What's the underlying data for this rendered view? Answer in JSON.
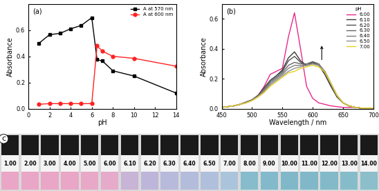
{
  "chart_data": [
    {
      "type": "line",
      "title": "(a)",
      "x_label": "pH",
      "y_label": "Absorbance",
      "xlim": [
        0,
        14
      ],
      "xticks": [
        0,
        2,
        4,
        6,
        8,
        10,
        12,
        14
      ],
      "ylim": [
        0,
        0.8
      ],
      "yticks": [
        {
          "value": 0,
          "label": "0.0"
        },
        {
          "value": 0.2,
          "label": "0.2"
        },
        {
          "value": 0.4,
          "label": "0.4"
        },
        {
          "value": 0.6,
          "label": "0.6"
        }
      ],
      "legend": "upper right",
      "series": [
        {
          "name": "A at 570 nm",
          "color": "#000000",
          "marker": "square",
          "x": [
            1,
            2,
            3,
            4,
            5,
            6,
            6.5,
            7,
            8,
            10,
            14
          ],
          "values": [
            0.5,
            0.565,
            0.575,
            0.61,
            0.635,
            0.695,
            0.375,
            0.365,
            0.29,
            0.25,
            0.12
          ]
        },
        {
          "name": "A at 600 nm",
          "color": "#ff2020",
          "marker": "circle",
          "x": [
            1,
            2,
            3,
            4,
            5,
            6,
            6.5,
            7,
            8,
            10,
            14
          ],
          "values": [
            0.035,
            0.04,
            0.04,
            0.04,
            0.04,
            0.04,
            0.48,
            0.44,
            0.4,
            0.385,
            0.325
          ]
        }
      ]
    },
    {
      "type": "line",
      "title": "(b)",
      "x_label": "Wavelength / nm",
      "y_label": "Absorbance",
      "xlim": [
        450,
        700
      ],
      "xticks": [
        450,
        500,
        550,
        600,
        650,
        700
      ],
      "ylim": [
        0,
        0.7
      ],
      "yticks": [
        {
          "value": 0,
          "label": "0.0"
        },
        {
          "value": 0.2,
          "label": "0.2"
        },
        {
          "value": 0.4,
          "label": "0.4"
        },
        {
          "value": 0.6,
          "label": "0.6"
        }
      ],
      "legend": "upper right",
      "legend_title": "pH",
      "x": [
        450,
        460,
        470,
        480,
        490,
        500,
        510,
        520,
        530,
        540,
        550,
        560,
        570,
        580,
        590,
        600,
        610,
        620,
        630,
        640,
        650,
        660,
        670,
        680,
        690,
        700
      ],
      "series": [
        {
          "name": "6.00",
          "color": "#e8288c",
          "values": [
            0.01,
            0.015,
            0.02,
            0.03,
            0.04,
            0.06,
            0.09,
            0.15,
            0.23,
            0.25,
            0.27,
            0.48,
            0.64,
            0.4,
            0.15,
            0.07,
            0.04,
            0.03,
            0.02,
            0.015,
            0.01,
            0.01,
            0.01,
            0.005,
            0.005,
            0.005
          ]
        },
        {
          "name": "6.10",
          "color": "#3a3a3a",
          "values": [
            0.01,
            0.015,
            0.02,
            0.03,
            0.045,
            0.06,
            0.09,
            0.14,
            0.19,
            0.22,
            0.26,
            0.34,
            0.38,
            0.32,
            0.29,
            0.31,
            0.29,
            0.23,
            0.15,
            0.08,
            0.04,
            0.02,
            0.01,
            0.005,
            0.005,
            0.005
          ]
        },
        {
          "name": "6.20",
          "color": "#505050",
          "values": [
            0.01,
            0.015,
            0.02,
            0.03,
            0.045,
            0.06,
            0.09,
            0.14,
            0.19,
            0.22,
            0.25,
            0.32,
            0.35,
            0.31,
            0.29,
            0.31,
            0.29,
            0.24,
            0.16,
            0.08,
            0.04,
            0.02,
            0.01,
            0.005,
            0.005,
            0.005
          ]
        },
        {
          "name": "6.30",
          "color": "#666666",
          "values": [
            0.01,
            0.015,
            0.02,
            0.03,
            0.045,
            0.06,
            0.09,
            0.13,
            0.18,
            0.21,
            0.24,
            0.29,
            0.31,
            0.3,
            0.3,
            0.315,
            0.3,
            0.25,
            0.17,
            0.09,
            0.04,
            0.02,
            0.01,
            0.005,
            0.005,
            0.005
          ]
        },
        {
          "name": "6.40",
          "color": "#7a7a7a",
          "values": [
            0.01,
            0.015,
            0.02,
            0.03,
            0.045,
            0.06,
            0.085,
            0.12,
            0.17,
            0.2,
            0.23,
            0.27,
            0.29,
            0.29,
            0.29,
            0.3,
            0.29,
            0.25,
            0.17,
            0.09,
            0.04,
            0.02,
            0.01,
            0.005,
            0.005,
            0.005
          ]
        },
        {
          "name": "6.50",
          "color": "#909090",
          "values": [
            0.01,
            0.015,
            0.02,
            0.03,
            0.04,
            0.055,
            0.08,
            0.11,
            0.16,
            0.19,
            0.22,
            0.25,
            0.27,
            0.28,
            0.29,
            0.3,
            0.29,
            0.25,
            0.17,
            0.09,
            0.04,
            0.02,
            0.01,
            0.005,
            0.005,
            0.005
          ]
        },
        {
          "name": "7.00",
          "color": "#e8d020",
          "values": [
            0.01,
            0.015,
            0.02,
            0.03,
            0.04,
            0.055,
            0.08,
            0.11,
            0.15,
            0.18,
            0.21,
            0.24,
            0.25,
            0.27,
            0.28,
            0.29,
            0.28,
            0.245,
            0.17,
            0.09,
            0.04,
            0.02,
            0.01,
            0.005,
            0.005,
            0.005
          ]
        }
      ]
    }
  ],
  "photo": {
    "label": "c",
    "samples": [
      {
        "label": "1.00",
        "color": "#eaa6c6"
      },
      {
        "label": "2.00",
        "color": "#eaa6c6"
      },
      {
        "label": "3.00",
        "color": "#eaa6c6"
      },
      {
        "label": "4.00",
        "color": "#eaa6c6"
      },
      {
        "label": "5.00",
        "color": "#e8a8c8"
      },
      {
        "label": "6.00",
        "color": "#e6aacb"
      },
      {
        "label": "6.10",
        "color": "#c8b4d6"
      },
      {
        "label": "6.20",
        "color": "#bdb6da"
      },
      {
        "label": "6.30",
        "color": "#b8badc"
      },
      {
        "label": "6.40",
        "color": "#b4bcdc"
      },
      {
        "label": "6.50",
        "color": "#b0c0dc"
      },
      {
        "label": "7.00",
        "color": "#aac4dc"
      },
      {
        "label": "8.00",
        "color": "#86bccc"
      },
      {
        "label": "9.00",
        "color": "#82bacb"
      },
      {
        "label": "10.00",
        "color": "#80b8ca"
      },
      {
        "label": "11.00",
        "color": "#80b8ca"
      },
      {
        "label": "12.00",
        "color": "#82bac9"
      },
      {
        "label": "13.00",
        "color": "#86bcca"
      },
      {
        "label": "14.00",
        "color": "#8cbecb"
      }
    ]
  }
}
